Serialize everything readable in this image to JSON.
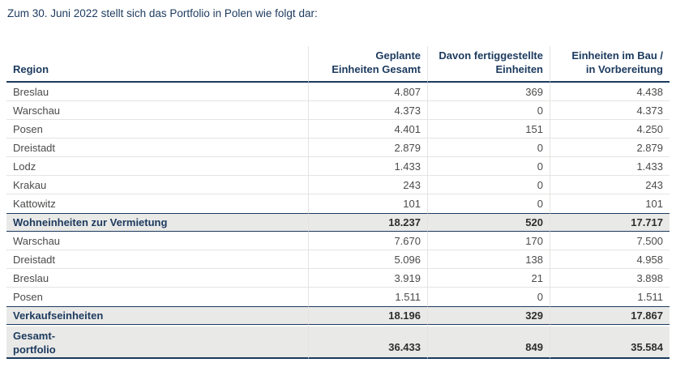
{
  "page": {
    "intro": "Zum 30. Juni 2022 stellt sich das Portfolio in Polen wie folgt dar:"
  },
  "colors": {
    "navy": "#1c3a5e",
    "summary_bg": "#e9e9e7",
    "divider": "#e4e4e2",
    "body_text": "#4b4b4a"
  },
  "table": {
    "header": {
      "region": "Region",
      "cols": [
        {
          "lines": [
            "Geplante",
            "Einheiten Gesamt"
          ]
        },
        {
          "lines": [
            "Davon fertiggestellte",
            "Einheiten"
          ]
        },
        {
          "lines": [
            "Einheiten im Bau /",
            "in Vorbereitung"
          ]
        }
      ]
    },
    "rows": [
      {
        "type": "data",
        "label": "Breslau",
        "values": [
          "4.807",
          "369",
          "4.438"
        ]
      },
      {
        "type": "data",
        "label": "Warschau",
        "values": [
          "4.373",
          "0",
          "4.373"
        ]
      },
      {
        "type": "data",
        "label": "Posen",
        "values": [
          "4.401",
          "151",
          "4.250"
        ]
      },
      {
        "type": "data",
        "label": "Dreistadt",
        "values": [
          "2.879",
          "0",
          "2.879"
        ]
      },
      {
        "type": "data",
        "label": "Lodz",
        "values": [
          "1.433",
          "0",
          "1.433"
        ]
      },
      {
        "type": "data",
        "label": "Krakau",
        "values": [
          "243",
          "0",
          "243"
        ]
      },
      {
        "type": "data",
        "label": "Kattowitz",
        "values": [
          "101",
          "0",
          "101"
        ]
      },
      {
        "type": "summary",
        "label": "Wohneinheiten zur Vermietung",
        "values": [
          "18.237",
          "520",
          "17.717"
        ]
      },
      {
        "type": "data",
        "label": "Warschau",
        "values": [
          "7.670",
          "170",
          "7.500"
        ]
      },
      {
        "type": "data",
        "label": "Dreistadt",
        "values": [
          "5.096",
          "138",
          "4.958"
        ]
      },
      {
        "type": "data",
        "label": "Breslau",
        "values": [
          "3.919",
          "21",
          "3.898"
        ]
      },
      {
        "type": "data",
        "label": "Posen",
        "values": [
          "1.511",
          "0",
          "1.511"
        ]
      },
      {
        "type": "summary",
        "label": "Verkaufseinheiten",
        "values": [
          "18.196",
          "329",
          "17.867"
        ]
      },
      {
        "type": "total",
        "label_lines": [
          "Gesamt-",
          "portfolio"
        ],
        "values": [
          "36.433",
          "849",
          "35.584"
        ]
      }
    ]
  }
}
